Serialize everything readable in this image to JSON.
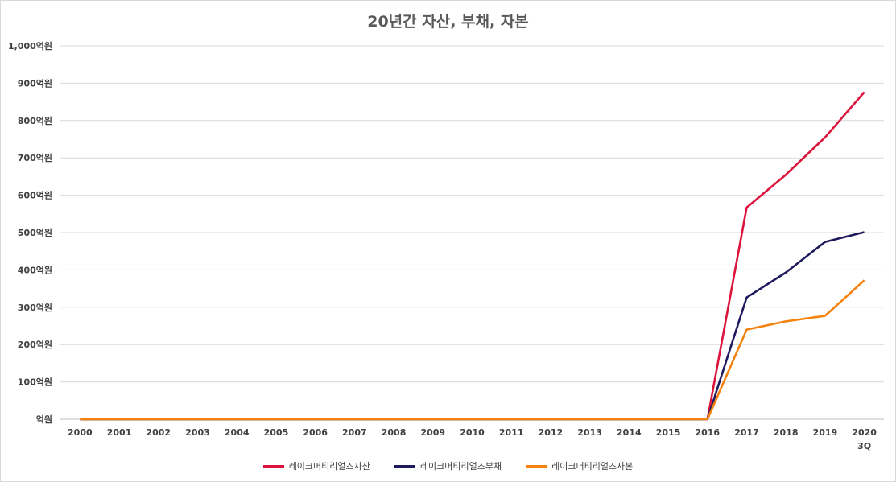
{
  "chart_data": {
    "type": "line",
    "title": "20년간 자산, 부채, 자본",
    "xlabel": "",
    "ylabel": "",
    "ylim": [
      0,
      1000
    ],
    "y_ticks": [
      {
        "value": 0,
        "label": "억원"
      },
      {
        "value": 100,
        "label": "100억원"
      },
      {
        "value": 200,
        "label": "200억원"
      },
      {
        "value": 300,
        "label": "300억원"
      },
      {
        "value": 400,
        "label": "400억원"
      },
      {
        "value": 500,
        "label": "500억원"
      },
      {
        "value": 600,
        "label": "600억원"
      },
      {
        "value": 700,
        "label": "700억원"
      },
      {
        "value": 800,
        "label": "800억원"
      },
      {
        "value": 900,
        "label": "900억원"
      },
      {
        "value": 1000,
        "label": "1,000억원"
      }
    ],
    "categories": [
      "2000",
      "2001",
      "2002",
      "2003",
      "2004",
      "2005",
      "2006",
      "2007",
      "2008",
      "2009",
      "2010",
      "2011",
      "2012",
      "2013",
      "2014",
      "2015",
      "2016",
      "2017",
      "2018",
      "2019",
      "2020 3Q"
    ],
    "grid": true,
    "legend_position": "bottom",
    "series": [
      {
        "name": "레이크머티리얼즈자산",
        "color": "#dc143c",
        "values": [
          0,
          0,
          0,
          0,
          0,
          0,
          0,
          0,
          0,
          0,
          0,
          0,
          0,
          0,
          0,
          0,
          0,
          567,
          655,
          755,
          876
        ]
      },
      {
        "name": "레이크머티리얼즈부채",
        "color": "#1f1a5e",
        "values": [
          0,
          0,
          0,
          0,
          0,
          0,
          0,
          0,
          0,
          0,
          0,
          0,
          0,
          0,
          0,
          0,
          0,
          326,
          393,
          475,
          501
        ]
      },
      {
        "name": "레이크머티리얼즈자본",
        "color": "#f5820d",
        "values": [
          0,
          0,
          0,
          0,
          0,
          0,
          0,
          0,
          0,
          0,
          0,
          0,
          0,
          0,
          0,
          0,
          0,
          240,
          262,
          277,
          372
        ]
      }
    ]
  }
}
